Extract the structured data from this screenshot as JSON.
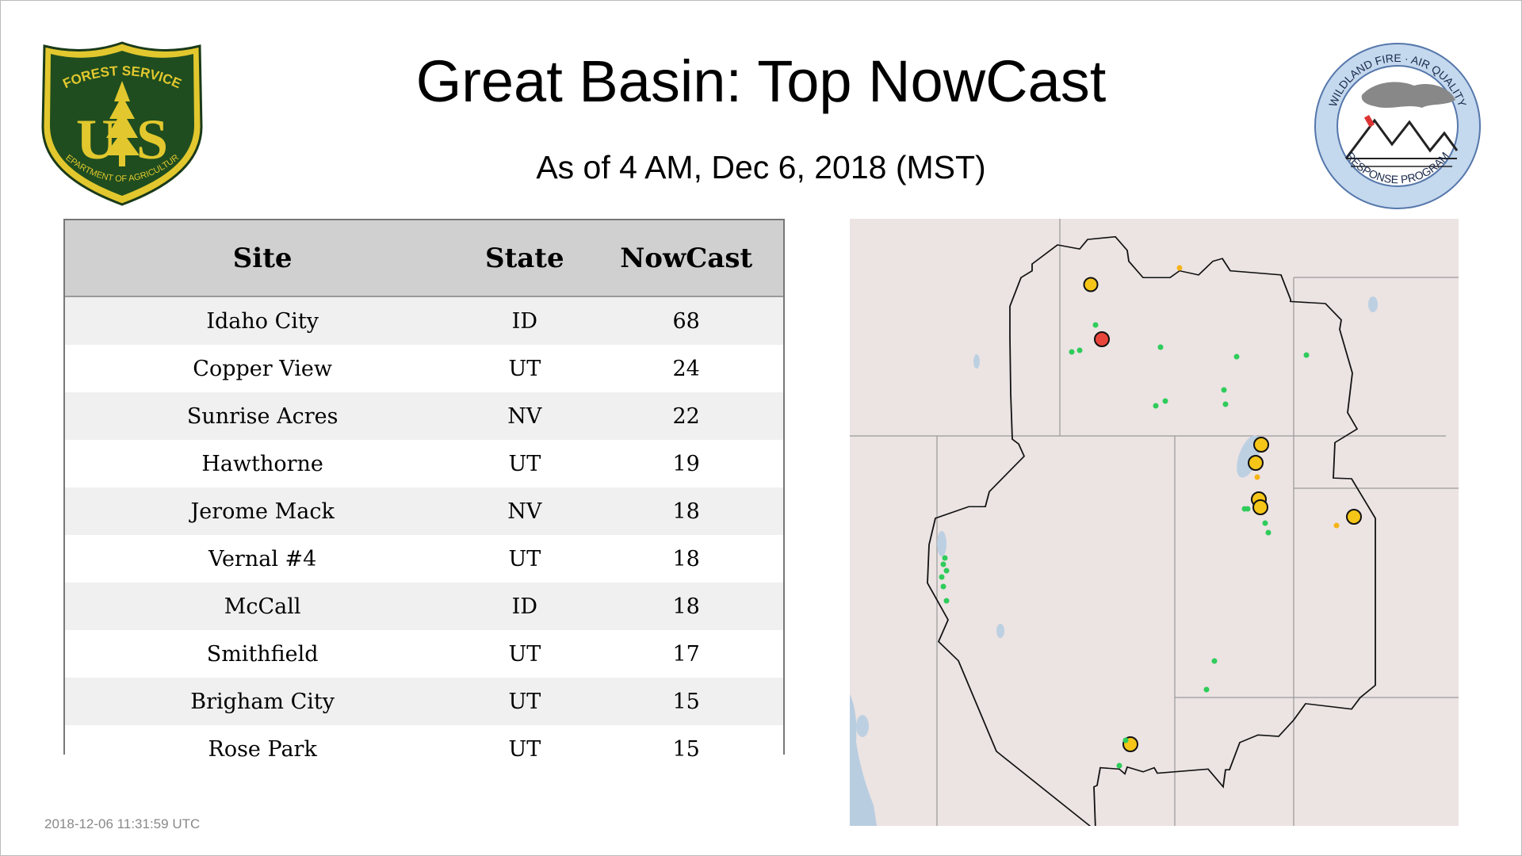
{
  "header": {
    "title": "Great Basin: Top NowCast",
    "subtitle": "As of  4 AM, Dec  6, 2018 (MST)"
  },
  "logos": {
    "left_text_top": "FOREST SERVICE",
    "left_text_bottom": "DEPARTMENT OF AGRICULTURE",
    "left_letters": "US",
    "right_text_top": "WILDLAND FIRE · AIR QUALITY",
    "right_text_bottom": "RESPONSE PROGRAM"
  },
  "table": {
    "columns": [
      "Site",
      "State",
      "NowCast"
    ],
    "rows": [
      {
        "site": "Idaho City",
        "state": "ID",
        "value": "68"
      },
      {
        "site": "Copper View",
        "state": "UT",
        "value": "24"
      },
      {
        "site": "Sunrise Acres",
        "state": "NV",
        "value": "22"
      },
      {
        "site": "Hawthorne",
        "state": "UT",
        "value": "19"
      },
      {
        "site": "Jerome Mack",
        "state": "NV",
        "value": "18"
      },
      {
        "site": "Vernal #4",
        "state": "UT",
        "value": "18"
      },
      {
        "site": "McCall",
        "state": "ID",
        "value": "18"
      },
      {
        "site": "Smithfield",
        "state": "UT",
        "value": "17"
      },
      {
        "site": "Brigham City",
        "state": "UT",
        "value": "15"
      },
      {
        "site": "Rose Park",
        "state": "UT",
        "value": "15"
      }
    ]
  },
  "map_colors": {
    "good": "#2ecc5a",
    "moderate": "#f5c518",
    "unhealthy": "#e8453c",
    "land": "#ede4e4",
    "water": "#b9cde0"
  },
  "footer": {
    "timestamp": "2018-12-06 11:31:59 UTC"
  }
}
